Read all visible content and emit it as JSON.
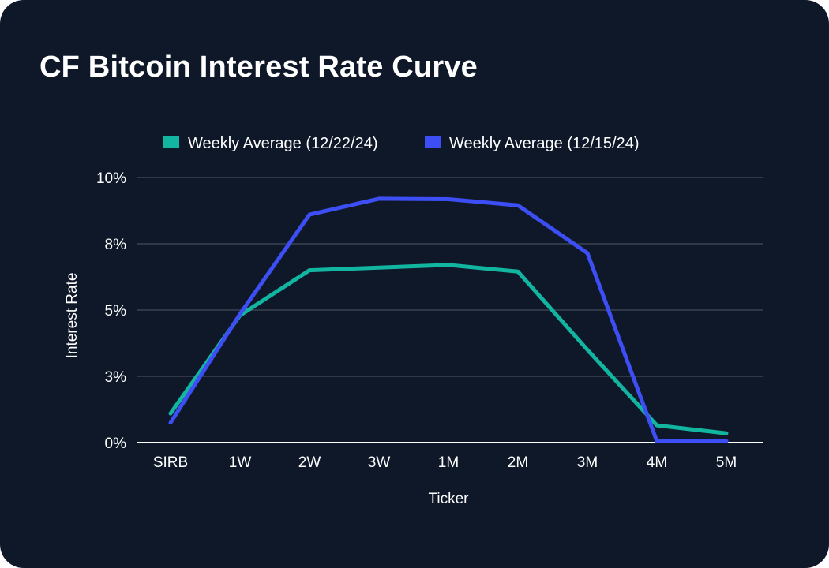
{
  "chart_data": {
    "type": "line",
    "title": "CF Bitcoin Interest Rate Curve",
    "xlabel": "Ticker",
    "ylabel": "Interest Rate",
    "categories": [
      "SIRB",
      "1W",
      "2W",
      "3W",
      "1M",
      "2M",
      "3M",
      "4M",
      "5M"
    ],
    "y_ticks": [
      0,
      2.5,
      5,
      7.5,
      10
    ],
    "y_tick_labels": [
      "0%",
      "3%",
      "5%",
      "8%",
      "10%"
    ],
    "ylim": [
      0,
      10
    ],
    "grid": true,
    "legend_position": "top-center",
    "series": [
      {
        "name": "Weekly Average (12/22/24)",
        "color": "#12b5a0",
        "values": [
          1.1,
          4.8,
          6.5,
          6.6,
          6.7,
          6.45,
          3.5,
          0.65,
          0.35
        ]
      },
      {
        "name": "Weekly Average (12/15/24)",
        "color": "#3d4ef5",
        "values": [
          0.75,
          4.85,
          8.6,
          9.2,
          9.18,
          8.95,
          7.15,
          0.05,
          0.05
        ]
      }
    ]
  }
}
